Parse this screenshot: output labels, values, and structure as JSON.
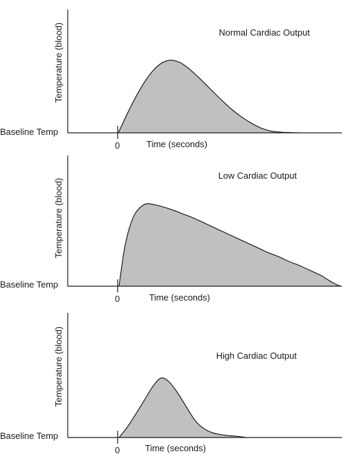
{
  "chart_data": [
    {
      "type": "area",
      "title": "Normal Cardiac Output",
      "xlabel": "Time (seconds)",
      "ylabel": "Temperature (blood)",
      "baseline_label": "Baseline Temp",
      "x_tick_label": "0",
      "x": [
        0,
        5,
        10,
        15,
        20,
        25,
        30,
        35,
        40,
        45,
        50,
        55,
        60,
        65,
        70,
        75,
        80,
        85,
        88
      ],
      "y": [
        0,
        30,
        57,
        79,
        94,
        100,
        97,
        87,
        74,
        60,
        46,
        33,
        22,
        13,
        6,
        2,
        0.8,
        0.3,
        0
      ],
      "fill_color": "#c0c0c0",
      "line_color": "#1a1a1a"
    },
    {
      "type": "area",
      "title": "Low Cardiac Output",
      "xlabel": "Time (seconds)",
      "ylabel": "Temperature (blood)",
      "baseline_label": "Baseline Temp",
      "x_tick_label": "0",
      "x": [
        0,
        5,
        10,
        15,
        20,
        25,
        30,
        40,
        50,
        60,
        70,
        80,
        90,
        100,
        110,
        120,
        130,
        140,
        150,
        160,
        170,
        180,
        190,
        200,
        208
      ],
      "y": [
        0,
        45,
        72,
        88,
        96,
        100,
        100,
        97,
        93,
        88,
        83,
        77,
        71,
        65,
        59,
        53,
        47,
        41,
        36,
        30,
        25,
        19,
        13,
        5,
        0
      ],
      "fill_color": "#c0c0c0",
      "line_color": "#1a1a1a"
    },
    {
      "type": "area",
      "title": "High Cardiac Output",
      "xlabel": "Time (seconds)",
      "ylabel": "Temperature (blood)",
      "baseline_label": "Baseline Temp",
      "x_tick_label": "0",
      "x": [
        0,
        5,
        10,
        15,
        20,
        25,
        30,
        35,
        40,
        45,
        50,
        55,
        60,
        65,
        70,
        75
      ],
      "y": [
        0,
        18,
        40,
        63,
        86,
        100,
        92,
        73,
        50,
        28,
        15,
        8,
        5,
        3,
        2,
        0
      ],
      "fill_color": "#c0c0c0",
      "line_color": "#1a1a1a"
    }
  ]
}
